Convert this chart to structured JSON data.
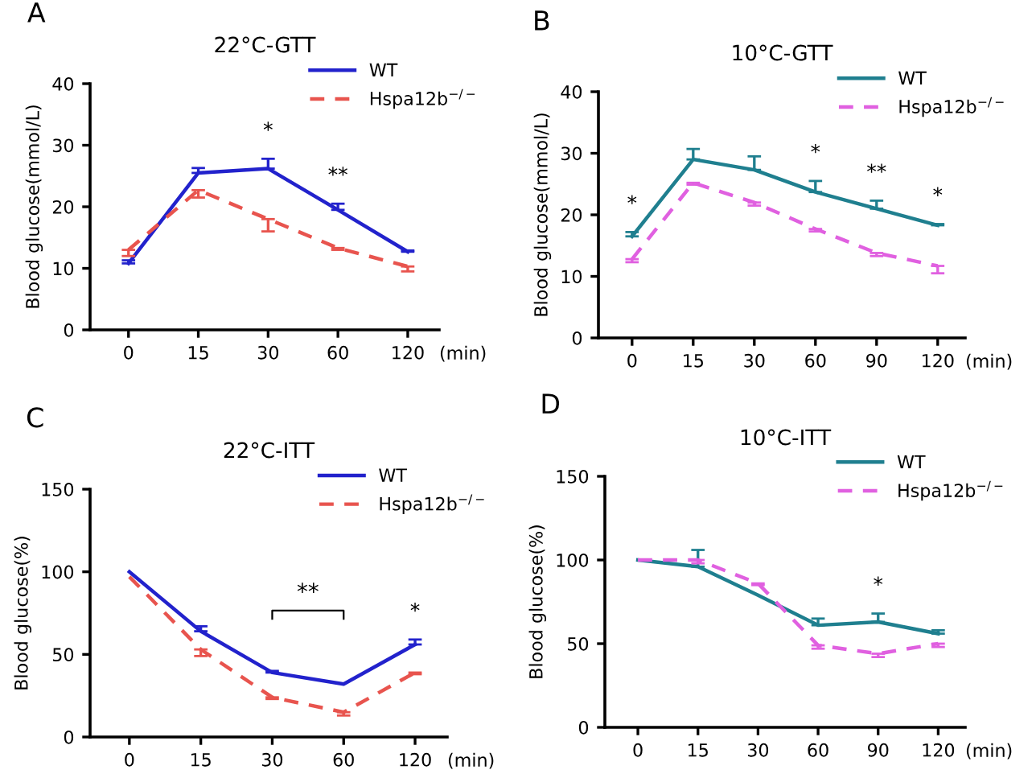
{
  "chart_data": [
    {
      "type": "line",
      "title": "22°C-GTT",
      "ylabel": "Blood glucose(mmol/L)",
      "xlabel": "(min)",
      "categories": [
        "0",
        "15",
        "30",
        "60",
        "120"
      ],
      "ylim": [
        0,
        40
      ],
      "yticks": [
        0,
        10,
        20,
        30,
        40
      ],
      "legend": "top right",
      "grid": false,
      "annotations": [
        "A",
        {
          "text": "*",
          "x": "30",
          "y": 26.2
        },
        {
          "text": "**",
          "x": "60",
          "y": 19.5
        }
      ],
      "series": [
        {
          "name": "WT",
          "color": "#2222cc",
          "line_style": "solid",
          "values": [
            10.8,
            25.5,
            26.2,
            19.5,
            12.7
          ],
          "errors": [
            [
              10.8,
              11.3
            ],
            [
              25.5,
              26.3
            ],
            [
              26.2,
              27.8
            ],
            [
              19.5,
              20.5
            ],
            [
              12.7,
              12.9
            ]
          ]
        },
        {
          "name": "Hspa12b$^{−/−}$",
          "color": "#e8544e",
          "line_style": "dashed",
          "values": [
            13,
            22.7,
            18,
            13.3,
            10.3
          ],
          "errors": [
            [
              12,
              13
            ],
            [
              21.5,
              22.7
            ],
            [
              16,
              18
            ],
            [
              13,
              13.3
            ],
            [
              9.5,
              10.3
            ]
          ]
        }
      ]
    },
    {
      "type": "line",
      "title": "10°C-GTT",
      "ylabel": "Blood glucose(mmol/L)",
      "xlabel": "(min)",
      "categories": [
        "0",
        "15",
        "30",
        "60",
        "90",
        "120"
      ],
      "ylim": [
        0,
        40
      ],
      "yticks": [
        0,
        10,
        20,
        30,
        40
      ],
      "legend": "top right",
      "grid": false,
      "annotations": [
        "B",
        {
          "text": "*",
          "x": "0",
          "y": 16.5
        },
        {
          "text": "*",
          "x": "60",
          "y": 23.7
        },
        {
          "text": "**",
          "x": "90",
          "y": 21
        },
        {
          "text": "*",
          "x": "120",
          "y": 18.3
        }
      ],
      "series": [
        {
          "name": "WT",
          "color": "#1f7f8f",
          "line_style": "solid",
          "values": [
            16.5,
            29,
            27.3,
            23.7,
            21,
            18.3
          ],
          "errors": [
            [
              16.5,
              17.2
            ],
            [
              29,
              30.7
            ],
            [
              27.3,
              29.5
            ],
            [
              23.7,
              25.5
            ],
            [
              21,
              22.3
            ],
            [
              18.3,
              18.5
            ]
          ]
        },
        {
          "name": "Hspa12b$^{−/−}$",
          "color": "#e060e0",
          "line_style": "dashed",
          "values": [
            12.8,
            25.2,
            22,
            17.7,
            13.8,
            11.7
          ],
          "errors": [
            [
              12.3,
              12.8
            ],
            [
              24.9,
              25.2
            ],
            [
              21.5,
              22
            ],
            [
              17.3,
              17.7
            ],
            [
              13.3,
              13.8
            ],
            [
              10.5,
              11.7
            ]
          ]
        }
      ]
    },
    {
      "type": "line",
      "title": "22°C-ITT",
      "ylabel": "Blood glucose(%)",
      "xlabel": "(min)",
      "categories": [
        "0",
        "15",
        "30",
        "60",
        "120"
      ],
      "ylim": [
        0,
        150
      ],
      "yticks": [
        0,
        50,
        100,
        150
      ],
      "legend": "top right",
      "grid": false,
      "annotations": [
        "C",
        "**",
        {
          "text": "*",
          "x": "120",
          "y": 56
        }
      ],
      "series": [
        {
          "name": "WT",
          "color": "#2222cc",
          "line_style": "solid",
          "values": [
            100,
            64,
            39,
            32,
            56
          ],
          "errors": [
            [
              100,
              100
            ],
            [
              64,
              67
            ],
            [
              39,
              40
            ],
            [
              32,
              32
            ],
            [
              56,
              59
            ]
          ]
        },
        {
          "name": "Hspa12b$^{−/−}$",
          "color": "#e8544e",
          "line_style": "dashed",
          "values": [
            97,
            53,
            24,
            15,
            39
          ],
          "errors": [
            [
              97,
              97
            ],
            [
              49,
              53
            ],
            [
              23,
              24
            ],
            [
              13,
              15
            ],
            [
              38,
              39
            ]
          ]
        }
      ]
    },
    {
      "type": "line",
      "title": "10°C-ITT",
      "ylabel": "Blood glucose(%)",
      "xlabel": "(min)",
      "categories": [
        "0",
        "15",
        "30",
        "60",
        "90",
        "120"
      ],
      "ylim": [
        0,
        150
      ],
      "yticks": [
        0,
        50,
        100,
        150
      ],
      "legend": "top right",
      "grid": false,
      "annotations": [
        "D",
        {
          "text": "*",
          "x": "90",
          "y": 63
        }
      ],
      "series": [
        {
          "name": "WT",
          "color": "#1f7f8f",
          "line_style": "solid",
          "values": [
            100,
            96,
            79,
            61,
            63,
            56
          ],
          "errors": [
            [
              100,
              100
            ],
            [
              96,
              106
            ],
            [
              79,
              79
            ],
            [
              61,
              65
            ],
            [
              63,
              68
            ],
            [
              56,
              58
            ]
          ]
        },
        {
          "name": "Hspa12b$^{−/−}$",
          "color": "#e060e0",
          "line_style": "dashed",
          "values": [
            100,
            100,
            86,
            49,
            44,
            50
          ],
          "errors": [
            [
              100,
              100
            ],
            [
              98,
              100
            ],
            [
              85,
              86
            ],
            [
              47,
              49
            ],
            [
              42,
              44
            ],
            [
              48,
              50
            ]
          ]
        }
      ]
    }
  ]
}
